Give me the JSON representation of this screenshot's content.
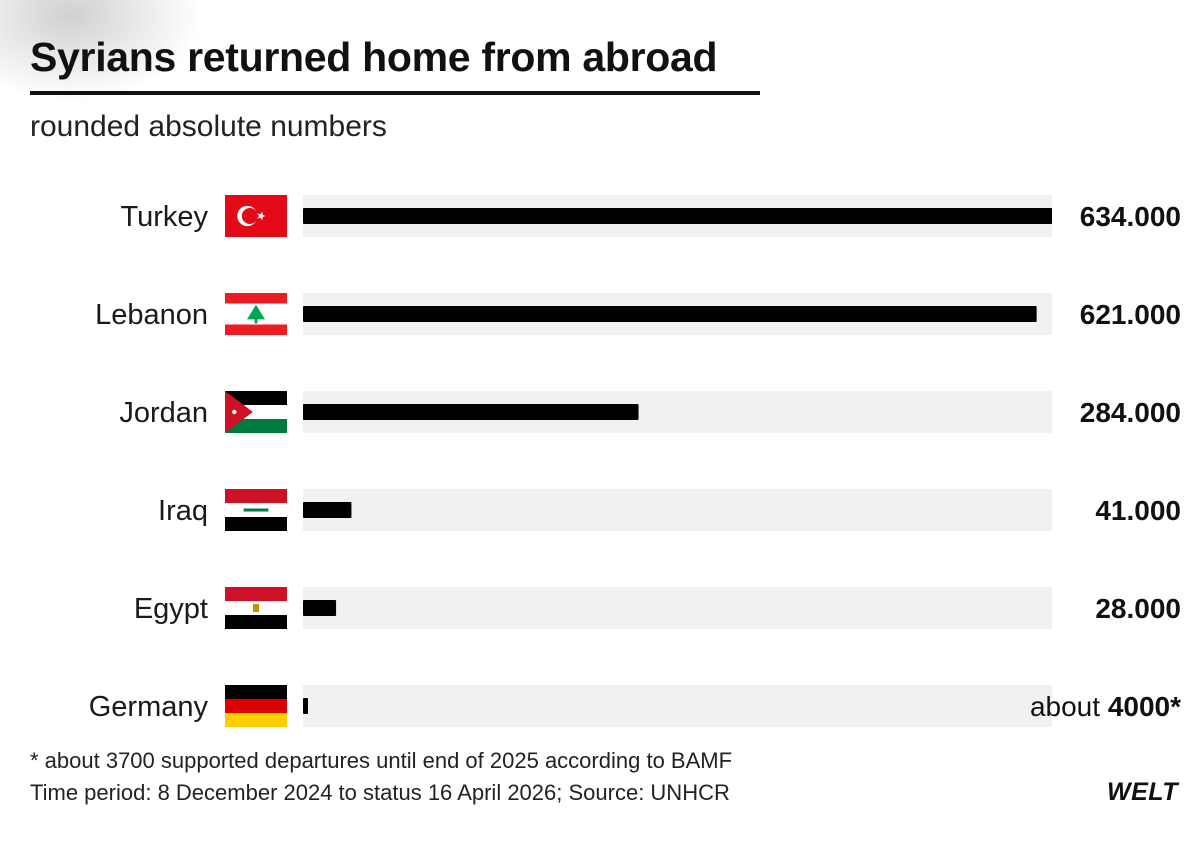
{
  "chart_data": {
    "type": "bar",
    "orientation": "horizontal",
    "title": "Syrians returned home from abroad",
    "subtitle": "rounded absolute numbers",
    "categories": [
      "Turkey",
      "Lebanon",
      "Jordan",
      "Iraq",
      "Egypt",
      "Germany"
    ],
    "values": [
      634000,
      621000,
      284000,
      41000,
      28000,
      4000
    ],
    "value_labels": [
      {
        "prefix": "",
        "value": "634.000"
      },
      {
        "prefix": "",
        "value": "621.000"
      },
      {
        "prefix": "",
        "value": "284.000"
      },
      {
        "prefix": "",
        "value": "41.000"
      },
      {
        "prefix": "",
        "value": "28.000"
      },
      {
        "prefix": "about ",
        "value": "4000*"
      }
    ],
    "flags": [
      "flag-turkey-icon",
      "flag-lebanon-icon",
      "flag-jordan-icon",
      "flag-iraq-icon",
      "flag-egypt-icon",
      "flag-germany-icon"
    ],
    "xlim": [
      0,
      634000
    ],
    "grid": false,
    "legend": "none",
    "colors": {
      "bar": "#000000",
      "track": "#f1f1f1"
    }
  },
  "footnotes": {
    "note": "* about 3700 supported departures until end of 2025 according to BAMF",
    "source": "Time period: 8 December 2024 to status 16 April 2026; Source: UNHCR"
  },
  "brand": {
    "logo_text": "WELT"
  }
}
